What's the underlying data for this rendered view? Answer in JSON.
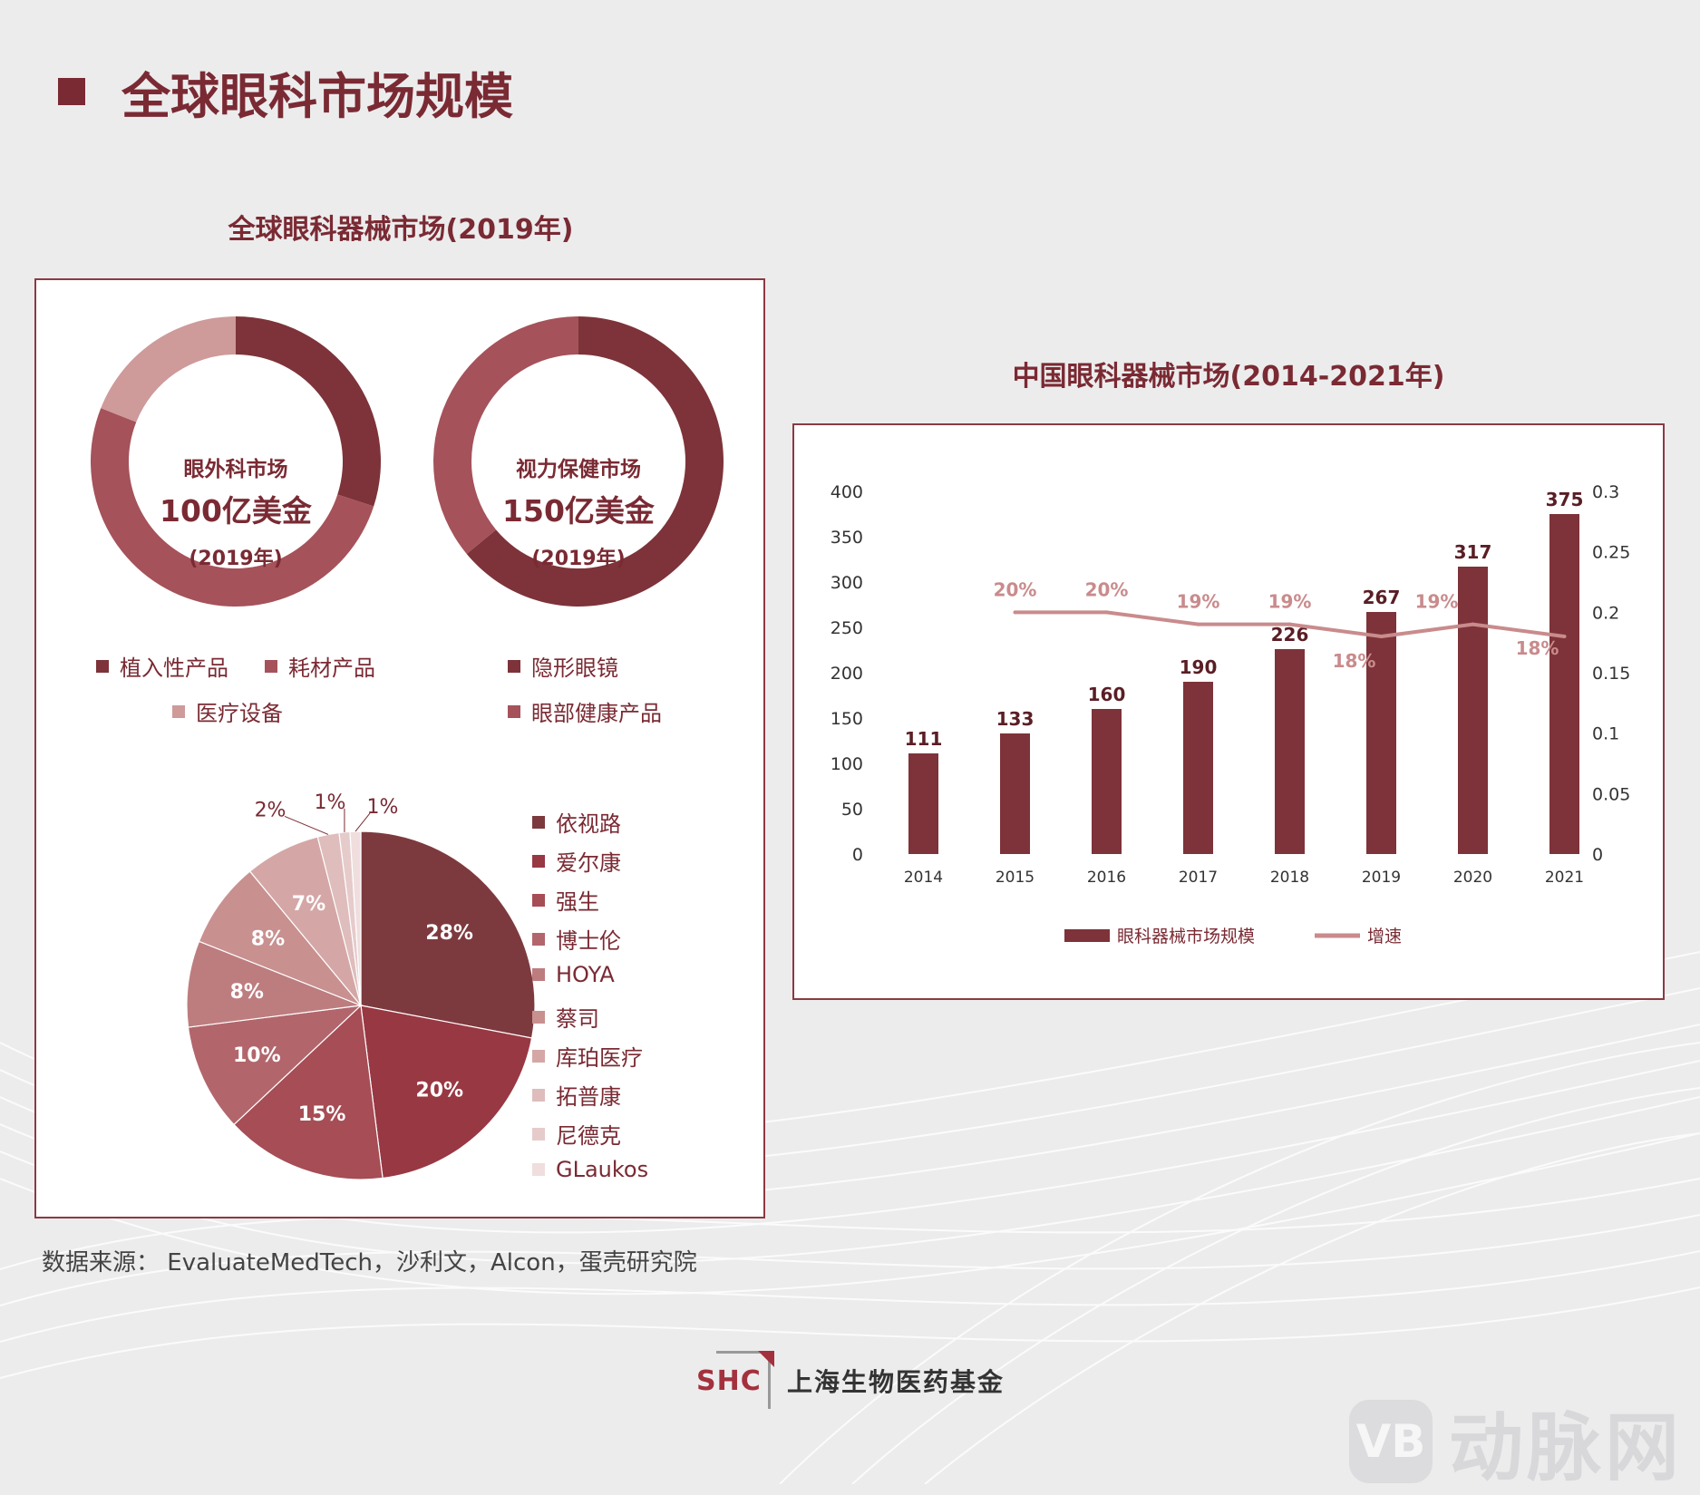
{
  "page_title": "全球眼科市场规模",
  "left_section_title": "全球眼科器械市场(2019年)",
  "right_section_title": "中国眼科器械市场(2014-2021年)",
  "source_text": "数据来源： EvaluateMedTech，沙利文，Alcon，蛋壳研究院",
  "logo": {
    "mark": "SHC",
    "name": "上海生物医药基金"
  },
  "watermark": {
    "icon": "VB",
    "text": "动脉网"
  },
  "colors": {
    "primary": "#7a2a33",
    "dark": "#7d3339",
    "red": "#9c3a44",
    "mid": "#a5525a",
    "pink": "#ce9a9a"
  },
  "chart_data": [
    {
      "type": "pie",
      "variant": "donut",
      "center_label": "眼外科市场",
      "center_value": "100亿美金",
      "center_note": "(2019年)",
      "slices": [
        {
          "name": "植入性产品",
          "share": 0.3,
          "color": "#7d3339"
        },
        {
          "name": "耗材产品",
          "share": 0.51,
          "color": "#a5525a"
        },
        {
          "name": "医疗设备",
          "share": 0.19,
          "color": "#ce9a9a"
        }
      ]
    },
    {
      "type": "pie",
      "variant": "donut",
      "center_label": "视力保健市场",
      "center_value": "150亿美金",
      "center_note": "(2019年)",
      "slices": [
        {
          "name": "隐形眼镜",
          "share": 0.64,
          "color": "#7d3339"
        },
        {
          "name": "眼部健康产品",
          "share": 0.36,
          "color": "#a5525a"
        }
      ]
    },
    {
      "type": "pie",
      "slices": [
        {
          "name": "依视路",
          "value": 28,
          "label": "28%",
          "color": "#7d3a3e"
        },
        {
          "name": "爱尔康",
          "value": 20,
          "label": "20%",
          "color": "#983843"
        },
        {
          "name": "强生",
          "value": 15,
          "label": "15%",
          "color": "#a64d55"
        },
        {
          "name": "博士伦",
          "value": 10,
          "label": "10%",
          "color": "#b2666c"
        },
        {
          "name": "HOYA",
          "value": 8,
          "label": "8%",
          "color": "#bd7d7f"
        },
        {
          "name": "蔡司",
          "value": 8,
          "label": "8%",
          "color": "#c99090"
        },
        {
          "name": "库珀医疗",
          "value": 7,
          "label": "7%",
          "color": "#d4a7a6"
        },
        {
          "name": "拓普康",
          "value": 2,
          "label": "2%",
          "color": "#debdbc"
        },
        {
          "name": "尼德克",
          "value": 1,
          "label": "1%",
          "color": "#e6cbcb"
        },
        {
          "name": "GLaukos",
          "value": 1,
          "label": "1%",
          "color": "#f0dede"
        }
      ]
    },
    {
      "type": "bar",
      "categories": [
        "2014",
        "2015",
        "2016",
        "2017",
        "2018",
        "2019",
        "2020",
        "2021"
      ],
      "series": [
        {
          "name": "眼科器械市场规模",
          "type": "bar",
          "axis": "left",
          "values": [
            111,
            133,
            160,
            190,
            226,
            267,
            317,
            375
          ],
          "labels": [
            "111",
            "133",
            "160",
            "190",
            "226",
            "267",
            "317",
            "375"
          ],
          "color": "#7d3339"
        },
        {
          "name": "增速",
          "type": "line",
          "axis": "right",
          "values": [
            null,
            0.2,
            0.2,
            0.19,
            0.19,
            0.18,
            0.19,
            0.18
          ],
          "labels": [
            "",
            "20%",
            "20%",
            "19%",
            "19%",
            "18%",
            "19%",
            "18%"
          ],
          "color": "#c98b8c"
        }
      ],
      "ylim": [
        0,
        400
      ],
      "yticks": [
        "0",
        "50",
        "100",
        "150",
        "200",
        "250",
        "300",
        "350",
        "400"
      ],
      "y2lim": [
        0,
        0.3
      ],
      "y2ticks": [
        "0",
        "0.05",
        "0.1",
        "0.15",
        "0.2",
        "0.25",
        "0.3"
      ],
      "legend": "bottom"
    }
  ]
}
